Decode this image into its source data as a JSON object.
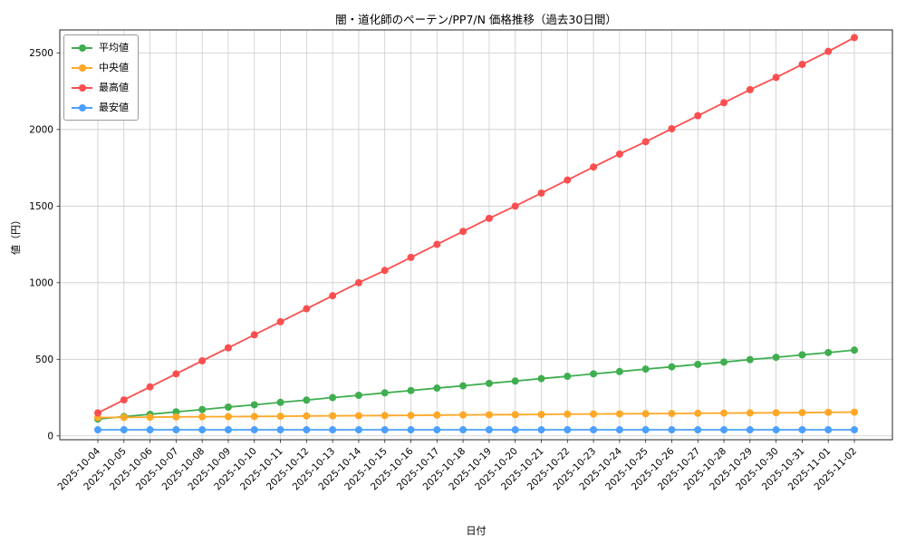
{
  "title": "闇・道化師のペーテン/PP7/N 価格推移（過去30日間）",
  "xlabel": "日付",
  "ylabel": "値（円）",
  "chart_data": {
    "type": "line",
    "title": "闇・道化師のペーテン/PP7/N 価格推移（過去30日間）",
    "xlabel": "日付",
    "ylabel": "値（円）",
    "grid": true,
    "legend_position": "upper left",
    "ylim": [
      -25,
      2650
    ],
    "yticks": [
      0,
      500,
      1000,
      1500,
      2000,
      2500
    ],
    "categories": [
      "2025-10-04",
      "2025-10-05",
      "2025-10-06",
      "2025-10-07",
      "2025-10-08",
      "2025-10-09",
      "2025-10-10",
      "2025-10-11",
      "2025-10-12",
      "2025-10-13",
      "2025-10-14",
      "2025-10-15",
      "2025-10-16",
      "2025-10-17",
      "2025-10-18",
      "2025-10-19",
      "2025-10-20",
      "2025-10-21",
      "2025-10-22",
      "2025-10-23",
      "2025-10-24",
      "2025-10-25",
      "2025-10-26",
      "2025-10-27",
      "2025-10-28",
      "2025-10-29",
      "2025-10-30",
      "2025-10-31",
      "2025-11-01",
      "2025-11-02"
    ],
    "series": [
      {
        "name": "平均値",
        "color": "#3fae4f",
        "values": [
          110,
          126,
          141,
          157,
          172,
          188,
          203,
          219,
          234,
          250,
          265,
          281,
          296,
          312,
          327,
          343,
          358,
          374,
          389,
          405,
          420,
          436,
          451,
          467,
          482,
          498,
          513,
          529,
          544,
          560
        ]
      },
      {
        "name": "中央値",
        "color": "#ffa726",
        "values": [
          120,
          121,
          122,
          124,
          125,
          126,
          127,
          128,
          130,
          131,
          132,
          133,
          134,
          136,
          137,
          138,
          139,
          140,
          142,
          143,
          144,
          145,
          146,
          148,
          149,
          150,
          151,
          152,
          154,
          155
        ]
      },
      {
        "name": "最高値",
        "color": "#fb4f4f",
        "values": [
          150,
          235,
          320,
          405,
          490,
          575,
          660,
          745,
          830,
          915,
          1000,
          1080,
          1165,
          1250,
          1335,
          1420,
          1500,
          1585,
          1670,
          1755,
          1840,
          1920,
          2005,
          2090,
          2175,
          2260,
          2340,
          2425,
          2510,
          2600
        ]
      },
      {
        "name": "最安値",
        "color": "#4b9fff",
        "values": [
          40,
          40,
          40,
          40,
          40,
          40,
          40,
          40,
          40,
          40,
          40,
          40,
          40,
          40,
          40,
          40,
          40,
          40,
          40,
          40,
          40,
          40,
          40,
          40,
          40,
          40,
          40,
          40,
          40,
          40
        ]
      }
    ]
  }
}
